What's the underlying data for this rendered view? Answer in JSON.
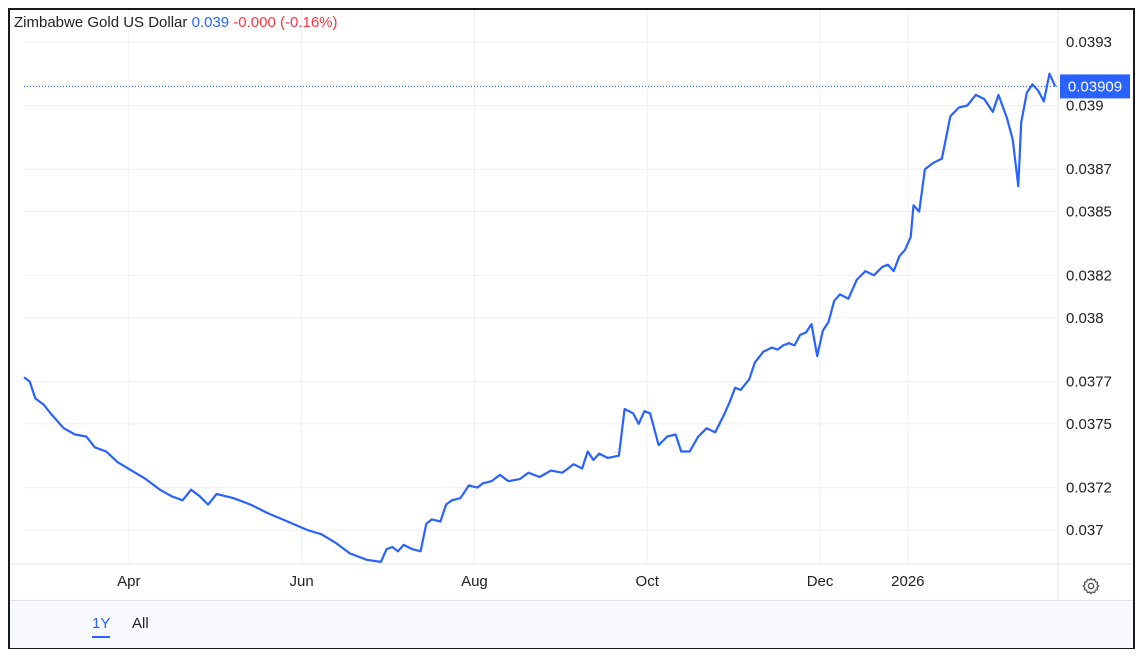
{
  "legend": {
    "name": "Zimbabwe Gold US Dollar",
    "value": "0.039",
    "change": "-0.000 (-0.16%)"
  },
  "last_price_label": "0.03909",
  "range_buttons": [
    {
      "label": "1Y",
      "active": true
    },
    {
      "label": "All",
      "active": false
    }
  ],
  "icons": {
    "settings": "gear-icon"
  },
  "colors": {
    "line": "#2962ff",
    "grid": "#eef0f3",
    "negative": "#f23645",
    "price_tag": "#2962ff"
  },
  "chart_data": {
    "type": "line",
    "title": "Zimbabwe Gold US Dollar",
    "xlabel": "",
    "ylabel": "",
    "x_ticks": [
      {
        "label": "Apr",
        "x": "2025-04-01"
      },
      {
        "label": "Jun",
        "x": "2025-06-01"
      },
      {
        "label": "Aug",
        "x": "2025-08-01"
      },
      {
        "label": "Oct",
        "x": "2025-10-01"
      },
      {
        "label": "Dec",
        "x": "2025-12-01"
      },
      {
        "label": "2026",
        "x": "2026-01-01"
      }
    ],
    "y_ticks": [
      {
        "label": "0.037",
        "value": 0.037
      },
      {
        "label": "0.0372",
        "value": 0.0372
      },
      {
        "label": "0.0375",
        "value": 0.0375
      },
      {
        "label": "0.0377",
        "value": 0.0377
      },
      {
        "label": "0.038",
        "value": 0.038
      },
      {
        "label": "0.0382",
        "value": 0.0382
      },
      {
        "label": "0.0385",
        "value": 0.0385
      },
      {
        "label": "0.0387",
        "value": 0.0387
      },
      {
        "label": "0.039",
        "value": 0.039
      },
      {
        "label": "0.0393",
        "value": 0.0393
      }
    ],
    "xlim": [
      "2025-02-23",
      "2026-02-23"
    ],
    "ylim": [
      0.03684,
      0.03945
    ],
    "grid": true,
    "legend_position": "top-left",
    "last_value": 0.03909,
    "series": [
      {
        "name": "Zimbabwe Gold US Dollar",
        "points": [
          [
            "2025-02-23",
            0.03772
          ],
          [
            "2025-02-25",
            0.0377
          ],
          [
            "2025-02-27",
            0.03762
          ],
          [
            "2025-03-02",
            0.03759
          ],
          [
            "2025-03-05",
            0.03754
          ],
          [
            "2025-03-09",
            0.03748
          ],
          [
            "2025-03-13",
            0.03745
          ],
          [
            "2025-03-17",
            0.03744
          ],
          [
            "2025-03-20",
            0.03739
          ],
          [
            "2025-03-24",
            0.03737
          ],
          [
            "2025-03-28",
            0.03732
          ],
          [
            "2025-04-02",
            0.03728
          ],
          [
            "2025-04-07",
            0.03724
          ],
          [
            "2025-04-12",
            0.03719
          ],
          [
            "2025-04-16",
            0.03716
          ],
          [
            "2025-04-20",
            0.03714
          ],
          [
            "2025-04-23",
            0.03719
          ],
          [
            "2025-04-26",
            0.03716
          ],
          [
            "2025-04-29",
            0.03712
          ],
          [
            "2025-05-02",
            0.03717
          ],
          [
            "2025-05-08",
            0.03715
          ],
          [
            "2025-05-14",
            0.03712
          ],
          [
            "2025-05-20",
            0.03708
          ],
          [
            "2025-05-27",
            0.03704
          ],
          [
            "2025-06-03",
            0.037
          ],
          [
            "2025-06-08",
            0.03698
          ],
          [
            "2025-06-13",
            0.03694
          ],
          [
            "2025-06-18",
            0.03689
          ],
          [
            "2025-06-24",
            0.03686
          ],
          [
            "2025-06-29",
            0.03685
          ],
          [
            "2025-07-01",
            0.03691
          ],
          [
            "2025-07-03",
            0.03692
          ],
          [
            "2025-07-05",
            0.0369
          ],
          [
            "2025-07-07",
            0.03693
          ],
          [
            "2025-07-10",
            0.03691
          ],
          [
            "2025-07-13",
            0.0369
          ],
          [
            "2025-07-15",
            0.03703
          ],
          [
            "2025-07-17",
            0.03705
          ],
          [
            "2025-07-20",
            0.03704
          ],
          [
            "2025-07-22",
            0.03712
          ],
          [
            "2025-07-24",
            0.03714
          ],
          [
            "2025-07-27",
            0.03715
          ],
          [
            "2025-07-30",
            0.03721
          ],
          [
            "2025-08-02",
            0.0372
          ],
          [
            "2025-08-04",
            0.03722
          ],
          [
            "2025-08-07",
            0.03723
          ],
          [
            "2025-08-10",
            0.03726
          ],
          [
            "2025-08-13",
            0.03723
          ],
          [
            "2025-08-17",
            0.03724
          ],
          [
            "2025-08-20",
            0.03727
          ],
          [
            "2025-08-24",
            0.03725
          ],
          [
            "2025-08-28",
            0.03728
          ],
          [
            "2025-09-01",
            0.03727
          ],
          [
            "2025-09-05",
            0.03731
          ],
          [
            "2025-09-08",
            0.03729
          ],
          [
            "2025-09-10",
            0.03737
          ],
          [
            "2025-09-12",
            0.03733
          ],
          [
            "2025-09-14",
            0.03736
          ],
          [
            "2025-09-17",
            0.03734
          ],
          [
            "2025-09-21",
            0.03735
          ],
          [
            "2025-09-23",
            0.03757
          ],
          [
            "2025-09-26",
            0.03755
          ],
          [
            "2025-09-28",
            0.0375
          ],
          [
            "2025-09-30",
            0.03756
          ],
          [
            "2025-10-02",
            0.03755
          ],
          [
            "2025-10-05",
            0.0374
          ],
          [
            "2025-10-08",
            0.03744
          ],
          [
            "2025-10-11",
            0.03745
          ],
          [
            "2025-10-13",
            0.03737
          ],
          [
            "2025-10-16",
            0.03737
          ],
          [
            "2025-10-19",
            0.03744
          ],
          [
            "2025-10-22",
            0.03748
          ],
          [
            "2025-10-25",
            0.03746
          ],
          [
            "2025-10-28",
            0.03754
          ],
          [
            "2025-10-30",
            0.0376
          ],
          [
            "2025-11-01",
            0.03767
          ],
          [
            "2025-11-03",
            0.03766
          ],
          [
            "2025-11-06",
            0.03771
          ],
          [
            "2025-11-08",
            0.03779
          ],
          [
            "2025-11-11",
            0.03784
          ],
          [
            "2025-11-14",
            0.03786
          ],
          [
            "2025-11-16",
            0.03785
          ],
          [
            "2025-11-18",
            0.03787
          ],
          [
            "2025-11-20",
            0.03788
          ],
          [
            "2025-11-22",
            0.03787
          ],
          [
            "2025-11-24",
            0.03792
          ],
          [
            "2025-11-26",
            0.03793
          ],
          [
            "2025-11-28",
            0.03797
          ],
          [
            "2025-11-30",
            0.03782
          ],
          [
            "2025-12-02",
            0.03794
          ],
          [
            "2025-12-04",
            0.03798
          ],
          [
            "2025-12-06",
            0.03808
          ],
          [
            "2025-12-08",
            0.03811
          ],
          [
            "2025-12-11",
            0.03809
          ],
          [
            "2025-12-14",
            0.03818
          ],
          [
            "2025-12-17",
            0.03822
          ],
          [
            "2025-12-20",
            0.0382
          ],
          [
            "2025-12-23",
            0.03824
          ],
          [
            "2025-12-25",
            0.03825
          ],
          [
            "2025-12-27",
            0.03822
          ],
          [
            "2025-12-29",
            0.03829
          ],
          [
            "2025-12-31",
            0.03832
          ],
          [
            "2026-01-02",
            0.03838
          ],
          [
            "2026-01-03",
            0.03853
          ],
          [
            "2026-01-05",
            0.0385
          ],
          [
            "2026-01-07",
            0.0387
          ],
          [
            "2026-01-10",
            0.03873
          ],
          [
            "2026-01-13",
            0.03875
          ],
          [
            "2026-01-16",
            0.03895
          ],
          [
            "2026-01-19",
            0.03899
          ],
          [
            "2026-01-22",
            0.039
          ],
          [
            "2026-01-25",
            0.03905
          ],
          [
            "2026-01-28",
            0.03903
          ],
          [
            "2026-01-31",
            0.03897
          ],
          [
            "2026-02-02",
            0.03905
          ],
          [
            "2026-02-05",
            0.03894
          ],
          [
            "2026-02-07",
            0.03884
          ],
          [
            "2026-02-09",
            0.03862
          ],
          [
            "2026-02-10",
            0.03892
          ],
          [
            "2026-02-12",
            0.03906
          ],
          [
            "2026-02-14",
            0.0391
          ],
          [
            "2026-02-16",
            0.03907
          ],
          [
            "2026-02-18",
            0.03902
          ],
          [
            "2026-02-20",
            0.03915
          ],
          [
            "2026-02-22",
            0.03909
          ]
        ]
      }
    ]
  }
}
